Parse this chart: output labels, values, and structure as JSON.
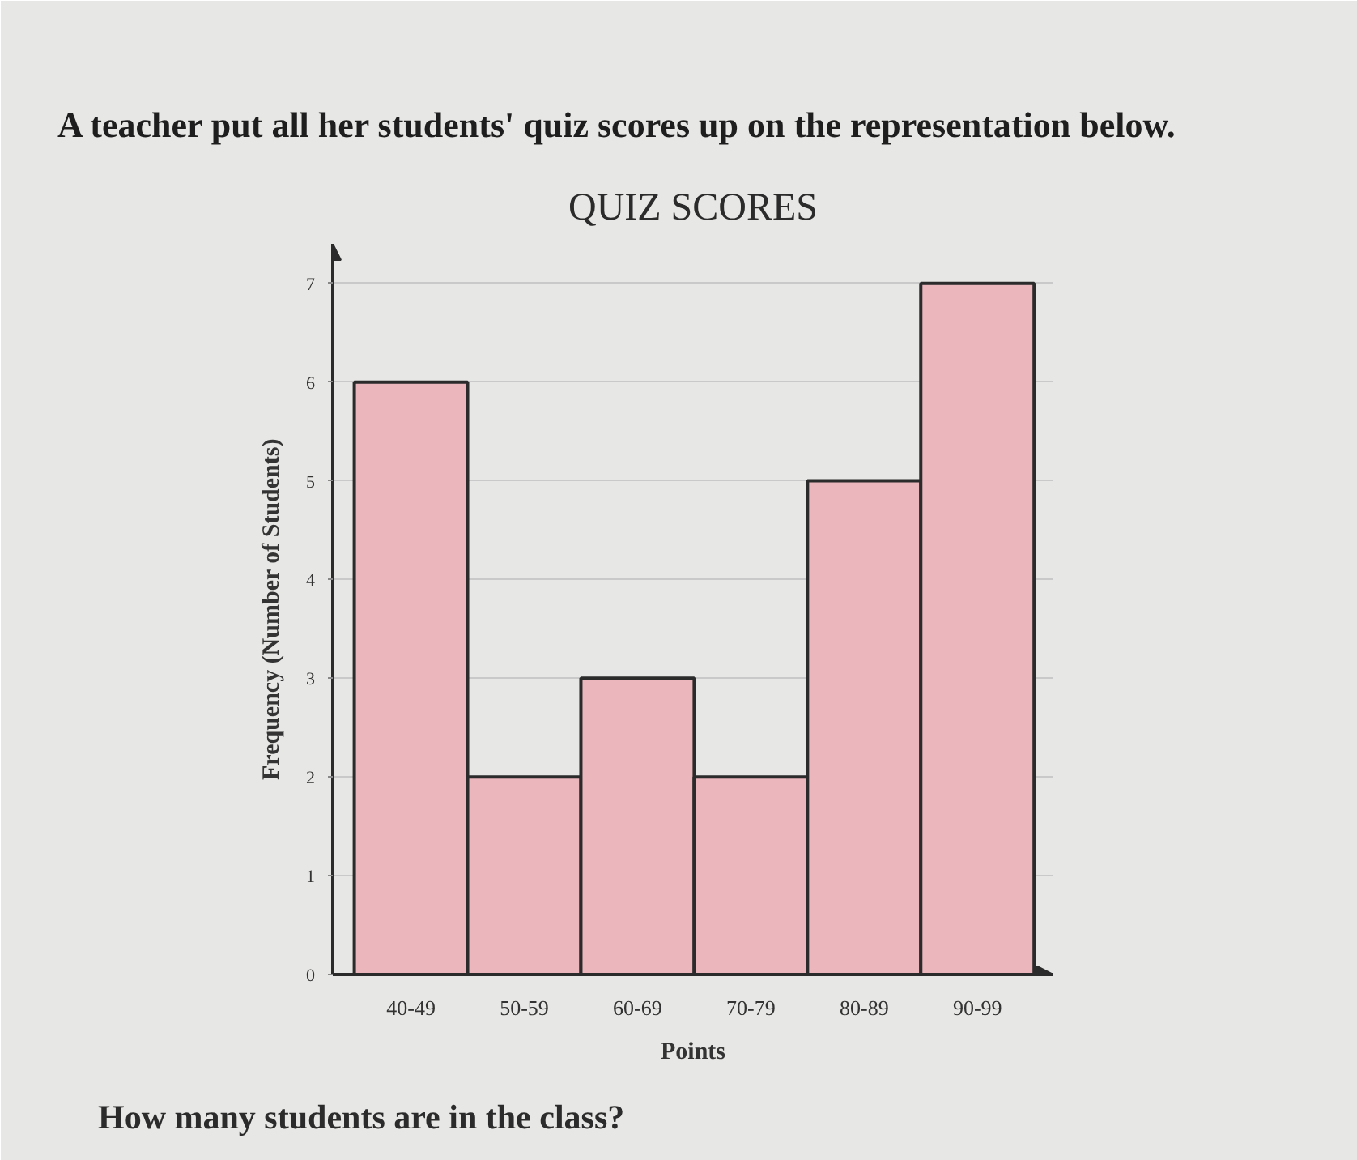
{
  "chart_data": {
    "type": "bar",
    "title": "QUIZ SCORES",
    "annotations": [
      "A teacher put all her students' quiz scores up on the representation below.",
      "How many students are in the class?"
    ],
    "xlabel": "Points",
    "ylabel": "Frequency (Number of Students)",
    "categories": [
      "40-49",
      "50-59",
      "60-69",
      "70-79",
      "80-89",
      "90-99"
    ],
    "values": [
      6,
      2,
      3,
      2,
      5,
      7
    ],
    "color": "#ebb6bc",
    "ylim": [
      0,
      7.4
    ],
    "yticks": [
      0,
      1,
      2,
      3,
      4,
      5,
      6,
      7
    ],
    "grid": "y"
  }
}
